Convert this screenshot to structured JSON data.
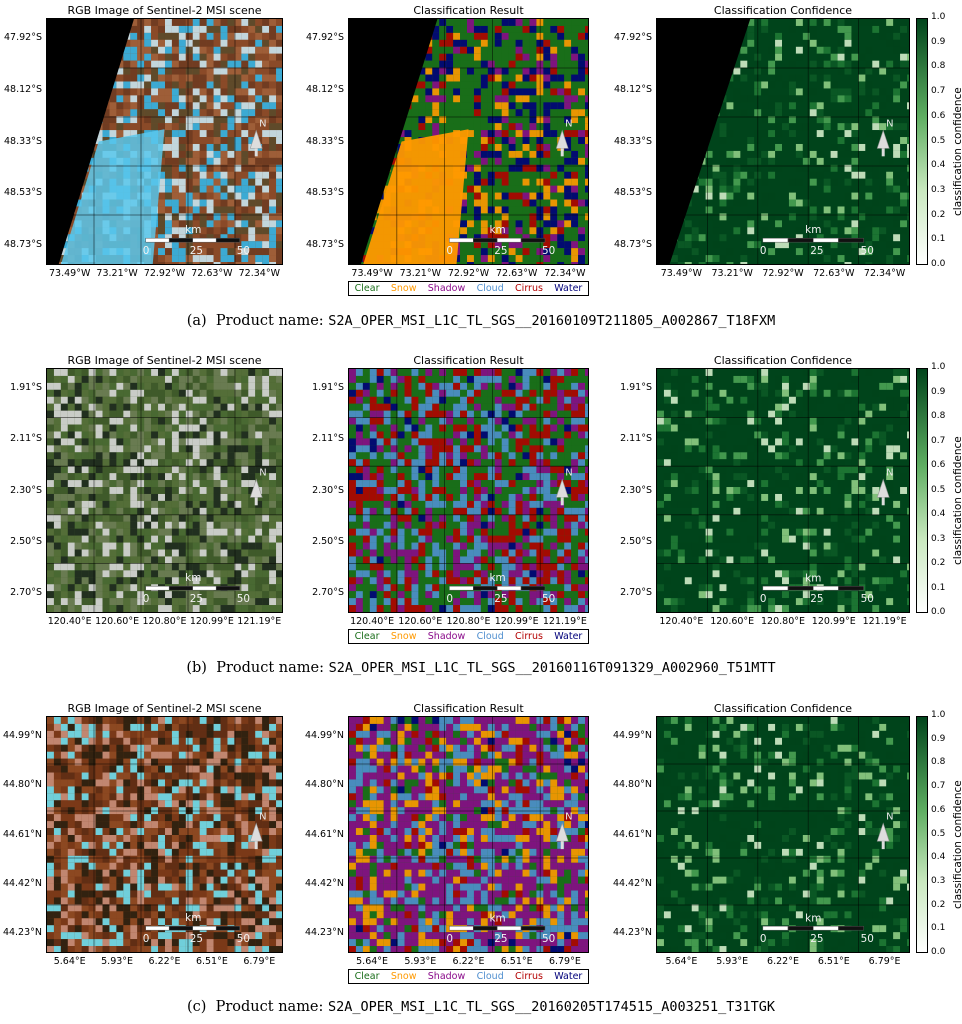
{
  "figure": {
    "panel_titles": {
      "rgb": "RGB Image of Sentinel-2 MSI scene",
      "classification": "Classification Result",
      "confidence": "Classification Confidence"
    },
    "legend": [
      {
        "label": "Clear",
        "color": "#1a6e1a"
      },
      {
        "label": "Snow",
        "color": "#ff9900"
      },
      {
        "label": "Shadow",
        "color": "#8a0a8a"
      },
      {
        "label": "Cloud",
        "color": "#4f8fcf"
      },
      {
        "label": "Cirrus",
        "color": "#b30000"
      },
      {
        "label": "Water",
        "color": "#00007a"
      }
    ],
    "colorbar": {
      "label": "classification confidence",
      "ticks": [
        "0.0",
        "0.1",
        "0.2",
        "0.3",
        "0.4",
        "0.5",
        "0.6",
        "0.7",
        "0.8",
        "0.9",
        "1.0"
      ]
    },
    "scalebar": {
      "unit": "km",
      "ticks": [
        "0",
        "25",
        "50"
      ]
    },
    "north_label": "N",
    "caption_prefix": "Product name:",
    "rows": [
      {
        "letter": "(a)",
        "product": "S2A_OPER_MSI_L1C_TL_SGS__20160109T211805_A002867_T18FXM",
        "lat_labels": [
          "47.92°S",
          "48.12°S",
          "48.33°S",
          "48.53°S",
          "48.73°S"
        ],
        "lon_labels": [
          "73.49°W",
          "73.21°W",
          "72.92°W",
          "72.63°W",
          "72.34°W"
        ]
      },
      {
        "letter": "(b)",
        "product": "S2A_OPER_MSI_L1C_TL_SGS__20160116T091329_A002960_T51MTT",
        "lat_labels": [
          "1.91°S",
          "2.11°S",
          "2.30°S",
          "2.50°S",
          "2.70°S"
        ],
        "lon_labels": [
          "120.40°E",
          "120.60°E",
          "120.80°E",
          "120.99°E",
          "121.19°E"
        ]
      },
      {
        "letter": "(c)",
        "product": "S2A_OPER_MSI_L1C_TL_SGS__20160205T174515_A003251_T31TGK",
        "lat_labels": [
          "44.99°N",
          "44.80°N",
          "44.61°N",
          "44.42°N",
          "44.23°N"
        ],
        "lon_labels": [
          "5.64°E",
          "5.93°E",
          "6.22°E",
          "6.51°E",
          "6.79°E"
        ]
      }
    ]
  }
}
